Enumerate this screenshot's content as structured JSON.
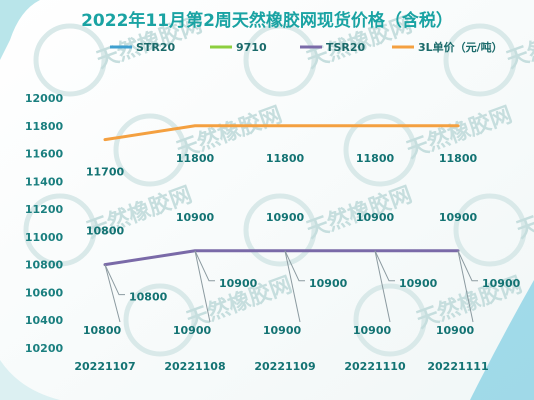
{
  "chart_data": {
    "type": "line",
    "title": "2022年11月第2周天然橡胶网现货价格（含税）",
    "categories": [
      "20221107",
      "20221108",
      "20221109",
      "20221110",
      "20221111"
    ],
    "series": [
      {
        "name": "STR20",
        "values": [
          null,
          null,
          null,
          null,
          null
        ],
        "color": "#3fa0d0"
      },
      {
        "name": "9710",
        "values": [
          null,
          null,
          null,
          null,
          null
        ],
        "color": "#8ccf3f"
      },
      {
        "name": "TSR20",
        "values": [
          10800,
          10900,
          10900,
          10900,
          10900
        ],
        "color": "#7a6aa8"
      },
      {
        "name": "3L单价（元/吨）",
        "values": [
          11700,
          11800,
          11800,
          11800,
          11800
        ],
        "color": "#f4a040"
      }
    ],
    "data_labels": {
      "TSR20_above": [
        "10800",
        "10900",
        "10900",
        "10900",
        "10900"
      ],
      "callout_right": [
        "10800",
        "10900",
        "10900",
        "10900",
        "10900"
      ],
      "callout_bottom": [
        "10800",
        "10900",
        "10900",
        "10900",
        "10900"
      ],
      "3L": [
        "11700",
        "11800",
        "11800",
        "11800",
        "11800"
      ]
    },
    "ylim": [
      10200,
      12000
    ],
    "yticks": [
      10200,
      10400,
      10600,
      10800,
      11000,
      11200,
      11400,
      11600,
      11800,
      12000
    ],
    "xlabel": "",
    "ylabel": "",
    "grid": false,
    "legend_position": "top"
  },
  "watermark": "天然橡胶网"
}
